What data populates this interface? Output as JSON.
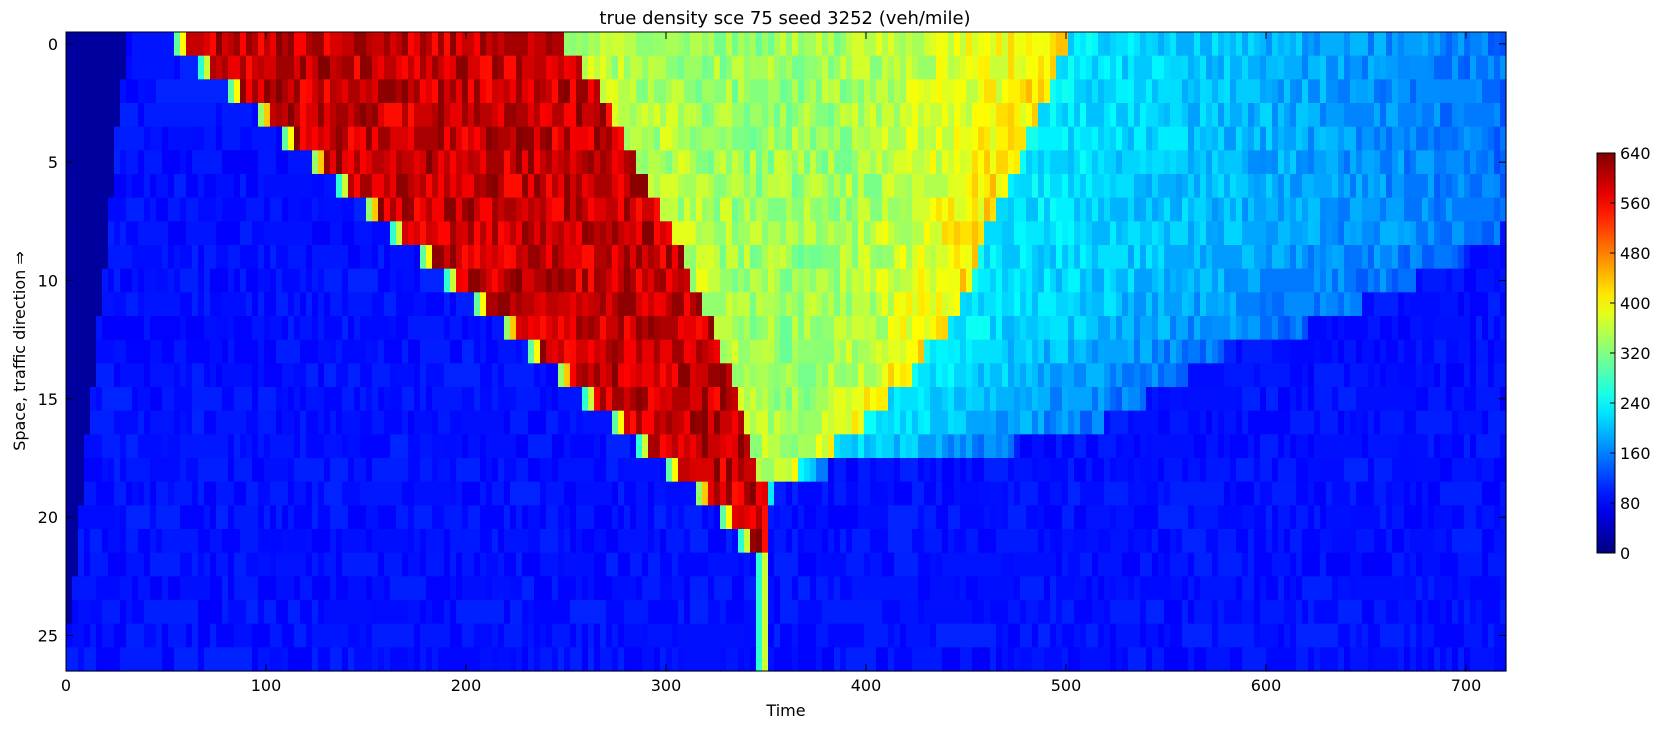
{
  "chart_data": {
    "type": "heatmap",
    "title": "true density sce 75 seed 3252 (veh/mile)",
    "xlabel": "Time",
    "ylabel": "Space, traffic direction ⇒",
    "xlim": [
      0,
      720
    ],
    "ylim": [
      26.5,
      -0.5
    ],
    "x_ticks": [
      0,
      100,
      200,
      300,
      400,
      500,
      600,
      700
    ],
    "y_ticks": [
      0,
      5,
      10,
      15,
      20,
      25
    ],
    "colorbar": {
      "min": 0,
      "max": 640,
      "ticks": [
        0,
        80,
        160,
        240,
        320,
        400,
        480,
        560,
        640
      ],
      "colormap": "jet"
    },
    "grid": false,
    "legend": "none",
    "n_space_cells": 27,
    "time_step": 3,
    "density_levels": {
      "free_flow": 90,
      "jam": 590,
      "queue_discharge": 360,
      "recovery": 230,
      "early_empty": 20
    },
    "zones": {
      "jam_front_time": [
        60,
        73,
        87,
        101,
        114,
        128,
        142,
        155,
        169,
        183,
        196,
        210,
        224,
        237,
        251,
        265,
        279,
        292,
        306,
        320,
        333,
        343,
        352,
        352,
        352,
        352,
        352
      ],
      "jam_back_time": [
        250,
        258,
        266,
        272,
        278,
        284,
        290,
        296,
        302,
        308,
        313,
        318,
        323,
        328,
        332,
        336,
        340,
        343,
        346,
        352,
        352,
        352,
        352,
        352,
        352,
        352,
        352
      ],
      "recovery_start_time": [
        500,
        495,
        492,
        487,
        480,
        476,
        470,
        465,
        460,
        456,
        452,
        448,
        440,
        430,
        422,
        410,
        400,
        385,
        365,
        352,
        352,
        352,
        352,
        352,
        352,
        352,
        352
      ],
      "congestion_end_time": [
        720,
        720,
        720,
        720,
        720,
        720,
        720,
        720,
        718,
        700,
        675,
        648,
        620,
        580,
        560,
        540,
        520,
        475,
        380,
        355,
        352,
        352,
        352,
        352,
        352,
        352,
        352
      ]
    }
  }
}
